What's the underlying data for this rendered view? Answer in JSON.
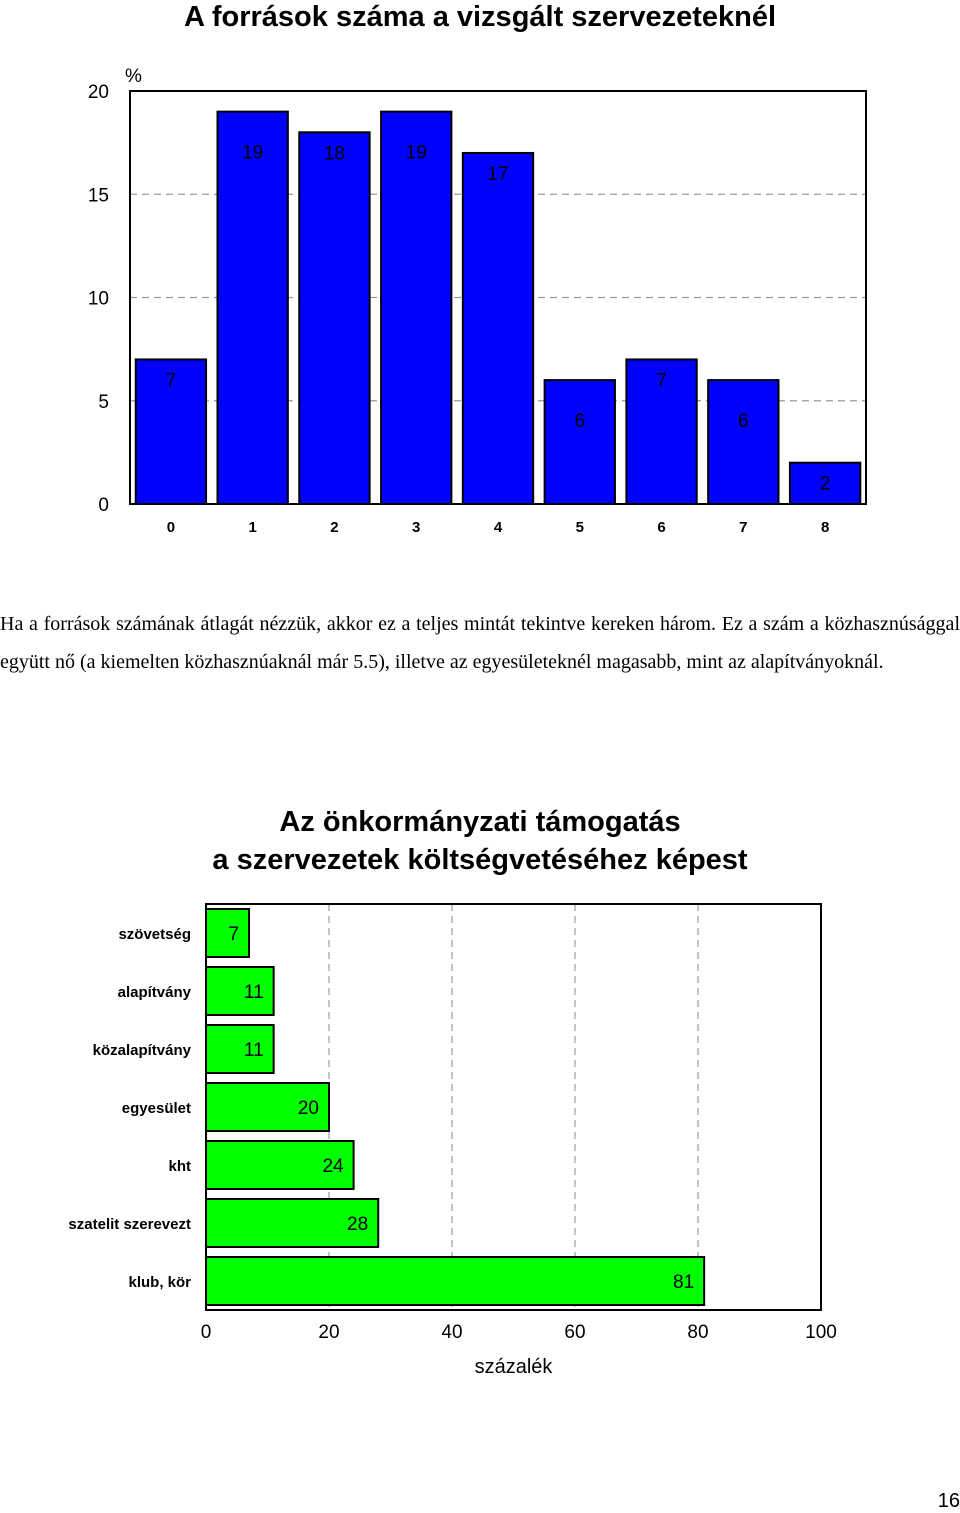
{
  "chart_data": [
    {
      "type": "bar",
      "title": "A források  száma a vizsgált szervezeteknél",
      "ylabel": "%",
      "categories": [
        "0",
        "1",
        "2",
        "3",
        "4",
        "5",
        "6",
        "7",
        "8"
      ],
      "values": [
        7,
        19,
        18,
        19,
        17,
        6,
        7,
        6,
        2
      ],
      "yticks": [
        "0",
        "5",
        "10",
        "15",
        "20"
      ],
      "ylim": [
        0,
        20
      ],
      "grid": "dashed horizontal",
      "bar_color": "#0000ff",
      "legend": "none"
    },
    {
      "type": "bar",
      "orientation": "horizontal",
      "title_line1": "Az önkormányzati támogatás",
      "title_line2": "a szervezetek költségvetéséhez képest",
      "xlabel": "százalék",
      "categories": [
        "szövetség",
        "alapítvány",
        "közalapítvány",
        "egyesület",
        "kht",
        "szatelit szerevezt",
        "klub, kör"
      ],
      "values": [
        7,
        11,
        11,
        20,
        24,
        28,
        81
      ],
      "xticks": [
        "0",
        "20",
        "40",
        "60",
        "80",
        "100"
      ],
      "xlim": [
        0,
        100
      ],
      "grid": "dashed vertical",
      "bar_color": "#00ff00",
      "legend": "none"
    }
  ],
  "paragraph": "Ha a források számának átlagát nézzük, akkor ez a teljes mintát tekintve kereken három. Ez a szám a közhasznúsággal együtt nő (a kiemelten közhasznúaknál már 5.5), illetve az egyesületeknél magasabb, mint az alapítványoknál.",
  "page_number": "16"
}
